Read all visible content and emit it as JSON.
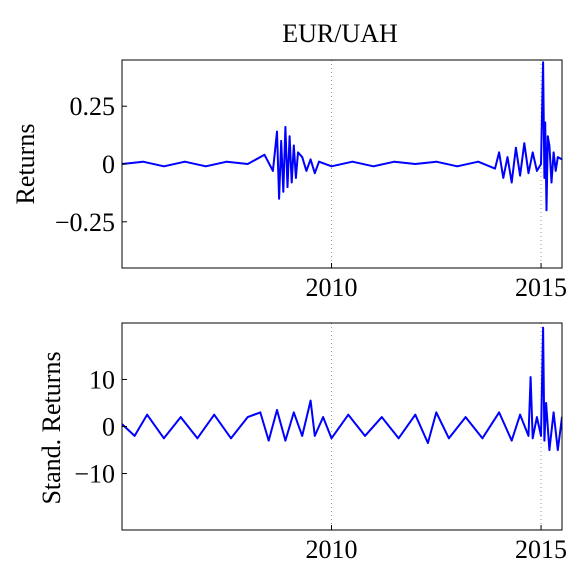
{
  "chart_data": [
    {
      "type": "line",
      "title": "EUR/UAH",
      "xlabel": "",
      "ylabel": "Returns",
      "xlim": [
        2005.0,
        2015.5
      ],
      "ylim": [
        -0.45,
        0.45
      ],
      "xticks": [
        2010,
        2015
      ],
      "xtick_labels": [
        "2010",
        "2015"
      ],
      "yticks": [
        0.25,
        0,
        -0.25
      ],
      "ytick_labels": [
        "0.25",
        "0",
        "−0.25"
      ],
      "grid": "dotted vertical lines at x ticks",
      "series": [
        {
          "color": "#0000ff",
          "x": [
            2005.0,
            2005.5,
            2006.0,
            2006.5,
            2007.0,
            2007.5,
            2008.0,
            2008.4,
            2008.6,
            2008.7,
            2008.75,
            2008.8,
            2008.85,
            2008.9,
            2008.95,
            2009.0,
            2009.05,
            2009.1,
            2009.15,
            2009.2,
            2009.3,
            2009.4,
            2009.5,
            2009.6,
            2009.7,
            2010.0,
            2010.5,
            2011.0,
            2011.5,
            2012.0,
            2012.5,
            2013.0,
            2013.5,
            2013.9,
            2014.0,
            2014.1,
            2014.2,
            2014.3,
            2014.4,
            2014.5,
            2014.6,
            2014.7,
            2014.8,
            2014.9,
            2015.0,
            2015.05,
            2015.08,
            2015.1,
            2015.13,
            2015.16,
            2015.2,
            2015.25,
            2015.3,
            2015.35,
            2015.4,
            2015.5
          ],
          "values": [
            0.0,
            0.01,
            -0.01,
            0.01,
            -0.01,
            0.01,
            0.0,
            0.04,
            -0.03,
            0.14,
            -0.15,
            0.1,
            -0.12,
            0.16,
            -0.1,
            0.12,
            -0.08,
            0.08,
            -0.06,
            0.05,
            0.03,
            -0.03,
            0.02,
            -0.04,
            0.01,
            -0.01,
            0.01,
            -0.01,
            0.01,
            0.0,
            0.01,
            -0.01,
            0.01,
            -0.02,
            0.05,
            -0.06,
            0.03,
            -0.08,
            0.07,
            -0.05,
            0.09,
            -0.04,
            0.05,
            -0.03,
            0.0,
            0.44,
            -0.06,
            0.18,
            -0.2,
            0.12,
            0.08,
            -0.08,
            0.05,
            -0.03,
            0.03,
            0.02
          ]
        }
      ]
    },
    {
      "type": "line",
      "title": "",
      "xlabel": "",
      "ylabel": "Stand. Returns",
      "xlim": [
        2005.0,
        2015.5
      ],
      "ylim": [
        -22,
        22
      ],
      "xticks": [
        2010,
        2015
      ],
      "xtick_labels": [
        "2010",
        "2015"
      ],
      "yticks": [
        10,
        0,
        -10
      ],
      "ytick_labels": [
        "10",
        "0",
        "−10"
      ],
      "grid": "dotted vertical lines at x ticks",
      "series": [
        {
          "color": "#0000ff",
          "x": [
            2005.0,
            2005.3,
            2005.6,
            2006.0,
            2006.4,
            2006.8,
            2007.2,
            2007.6,
            2008.0,
            2008.3,
            2008.5,
            2008.7,
            2008.9,
            2009.1,
            2009.3,
            2009.5,
            2009.6,
            2009.8,
            2010.0,
            2010.4,
            2010.8,
            2011.2,
            2011.6,
            2012.0,
            2012.3,
            2012.5,
            2012.8,
            2013.2,
            2013.6,
            2014.0,
            2014.3,
            2014.5,
            2014.7,
            2014.75,
            2014.8,
            2014.9,
            2015.0,
            2015.05,
            2015.08,
            2015.12,
            2015.2,
            2015.3,
            2015.4,
            2015.5
          ],
          "values": [
            0.5,
            -2.0,
            2.5,
            -2.5,
            2.0,
            -2.5,
            2.5,
            -2.5,
            2.0,
            3.0,
            -3.0,
            3.5,
            -3.0,
            3.0,
            -2.0,
            5.5,
            -2.0,
            2.0,
            -2.5,
            2.5,
            -2.0,
            2.0,
            -2.5,
            2.5,
            -3.5,
            3.0,
            -2.5,
            2.0,
            -2.5,
            3.0,
            -3.0,
            2.5,
            -2.0,
            10.5,
            -2.5,
            2.0,
            -2.0,
            21.0,
            -3.0,
            5.0,
            -5.0,
            3.0,
            -5.0,
            2.0
          ]
        }
      ]
    }
  ]
}
